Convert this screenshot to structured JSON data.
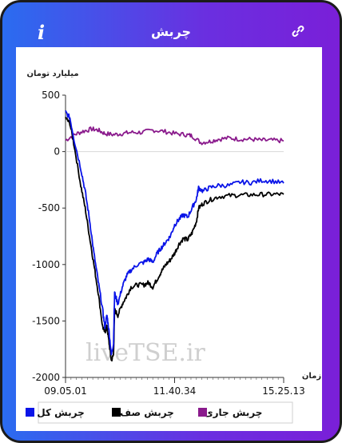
{
  "header": {
    "title": "چربش",
    "info_icon": "info-icon",
    "link_icon": "link-icon"
  },
  "colors": {
    "total": "#0a14e8",
    "queue": "#000000",
    "current": "#8a1a8c",
    "grid": "#d8d8d8",
    "gradient_left": "#2a6cf0",
    "gradient_right": "#7a1fd8"
  },
  "chart_data": {
    "type": "line",
    "ylabel": "میلیارد تومان",
    "xlabel": "زمان",
    "ylim": [
      -2000,
      500
    ],
    "yticks": [
      500,
      0,
      -500,
      -1000,
      -1500,
      -2000
    ],
    "xtick_labels": [
      "09.05.01",
      "11.40.34",
      "15.25.13"
    ],
    "watermark": "liveTSE.ir",
    "grid": "y at zero only",
    "legend_position": "bottom",
    "series": [
      {
        "name": "چربش کل",
        "color": "#0a14e8",
        "points": [
          [
            0,
            350
          ],
          [
            2,
            300
          ],
          [
            4,
            100
          ],
          [
            7,
            -150
          ],
          [
            9,
            -350
          ],
          [
            11,
            -600
          ],
          [
            13,
            -900
          ],
          [
            15,
            -1150
          ],
          [
            17,
            -1400
          ],
          [
            18,
            -1550
          ],
          [
            19,
            -1450
          ],
          [
            20,
            -1600
          ],
          [
            21,
            -1800
          ],
          [
            22,
            -1700
          ],
          [
            22.5,
            -1250
          ],
          [
            24,
            -1350
          ],
          [
            26,
            -1200
          ],
          [
            28,
            -1100
          ],
          [
            30,
            -1050
          ],
          [
            33,
            -1000
          ],
          [
            36,
            -980
          ],
          [
            38,
            -950
          ],
          [
            40,
            -980
          ],
          [
            42,
            -900
          ],
          [
            44,
            -850
          ],
          [
            46,
            -800
          ],
          [
            48,
            -750
          ],
          [
            50,
            -650
          ],
          [
            52,
            -600
          ],
          [
            54,
            -560
          ],
          [
            56,
            -580
          ],
          [
            58,
            -500
          ],
          [
            60,
            -420
          ],
          [
            61,
            -320
          ],
          [
            63,
            -350
          ],
          [
            66,
            -320
          ],
          [
            70,
            -300
          ],
          [
            75,
            -300
          ],
          [
            80,
            -270
          ],
          [
            85,
            -275
          ],
          [
            90,
            -255
          ],
          [
            95,
            -262
          ],
          [
            100,
            -280
          ]
        ]
      },
      {
        "name": "چربش صف",
        "color": "#000000",
        "points": [
          [
            0,
            300
          ],
          [
            2,
            250
          ],
          [
            4,
            50
          ],
          [
            7,
            -300
          ],
          [
            9,
            -500
          ],
          [
            11,
            -750
          ],
          [
            13,
            -1000
          ],
          [
            15,
            -1250
          ],
          [
            17,
            -1550
          ],
          [
            18,
            -1600
          ],
          [
            19,
            -1550
          ],
          [
            20,
            -1700
          ],
          [
            21,
            -1850
          ],
          [
            22,
            -1800
          ],
          [
            22.5,
            -1400
          ],
          [
            24,
            -1450
          ],
          [
            26,
            -1350
          ],
          [
            28,
            -1280
          ],
          [
            30,
            -1200
          ],
          [
            33,
            -1180
          ],
          [
            36,
            -1180
          ],
          [
            38,
            -1160
          ],
          [
            40,
            -1200
          ],
          [
            42,
            -1130
          ],
          [
            44,
            -1060
          ],
          [
            46,
            -1000
          ],
          [
            48,
            -960
          ],
          [
            50,
            -900
          ],
          [
            52,
            -820
          ],
          [
            54,
            -770
          ],
          [
            56,
            -780
          ],
          [
            58,
            -720
          ],
          [
            60,
            -620
          ],
          [
            61,
            -500
          ],
          [
            63,
            -460
          ],
          [
            66,
            -430
          ],
          [
            70,
            -400
          ],
          [
            75,
            -390
          ],
          [
            80,
            -385
          ],
          [
            85,
            -383
          ],
          [
            90,
            -380
          ],
          [
            95,
            -378
          ],
          [
            100,
            -378
          ]
        ]
      },
      {
        "name": "چربش جاری",
        "color": "#8a1a8c",
        "points": [
          [
            0,
            100
          ],
          [
            4,
            150
          ],
          [
            8,
            180
          ],
          [
            12,
            200
          ],
          [
            15,
            190
          ],
          [
            18,
            160
          ],
          [
            22,
            150
          ],
          [
            26,
            160
          ],
          [
            30,
            170
          ],
          [
            35,
            170
          ],
          [
            40,
            190
          ],
          [
            45,
            180
          ],
          [
            50,
            160
          ],
          [
            55,
            150
          ],
          [
            58,
            140
          ],
          [
            62,
            80
          ],
          [
            66,
            90
          ],
          [
            70,
            110
          ],
          [
            75,
            120
          ],
          [
            80,
            110
          ],
          [
            85,
            110
          ],
          [
            90,
            100
          ],
          [
            95,
            100
          ],
          [
            100,
            95
          ]
        ]
      }
    ]
  },
  "legend": {
    "items": [
      {
        "label": "چربش کل",
        "color": "#0a14e8"
      },
      {
        "label": "چربش صف",
        "color": "#000000"
      },
      {
        "label": "چربش جاری",
        "color": "#8a1a8c"
      }
    ]
  }
}
